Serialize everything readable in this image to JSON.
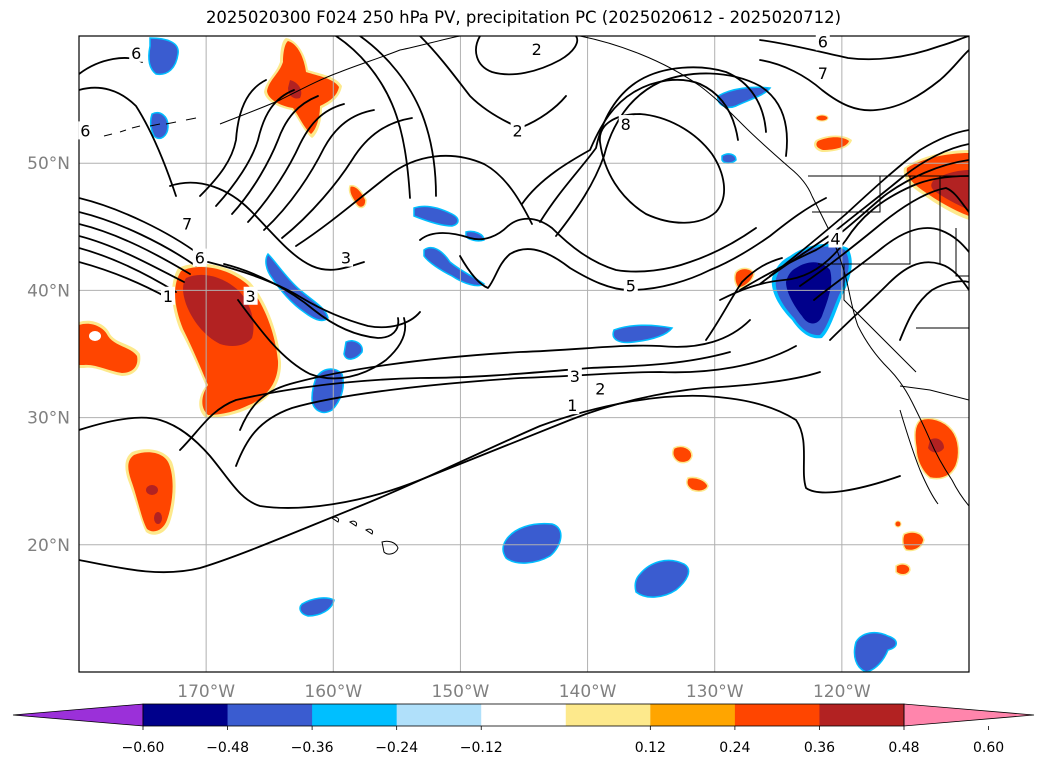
{
  "figure": {
    "title": "2025020300 F024 250 hPa PV, precipitation PC (2025020612 - 2025020712)"
  },
  "map": {
    "projection": "PlateCarree",
    "lon_range": [
      -180,
      -110
    ],
    "lat_range": [
      10,
      60
    ],
    "lon_ticks": [
      {
        "lon": -170,
        "label": "170°W"
      },
      {
        "lon": -160,
        "label": "160°W"
      },
      {
        "lon": -150,
        "label": "150°W"
      },
      {
        "lon": -140,
        "label": "140°W"
      },
      {
        "lon": -130,
        "label": "130°W"
      },
      {
        "lon": -120,
        "label": "120°W"
      }
    ],
    "lat_ticks": [
      {
        "lat": 50,
        "label": "50°N"
      },
      {
        "lat": 40,
        "label": "40°N"
      },
      {
        "lat": 30,
        "label": "30°N"
      },
      {
        "lat": 20,
        "label": "20°N"
      }
    ],
    "gridlines": true,
    "tick_label_color": "#808080"
  },
  "pv_contours": {
    "color": "#000000",
    "labels": [
      {
        "text": "6",
        "lon": -175.5,
        "lat": 58.6
      },
      {
        "text": "2",
        "lon": -144,
        "lat": 58.9
      },
      {
        "text": "6",
        "lon": -121.5,
        "lat": 59.5
      },
      {
        "text": "7",
        "lon": -121.5,
        "lat": 57.0
      },
      {
        "text": "2",
        "lon": -145.5,
        "lat": 52.5
      },
      {
        "text": "8",
        "lon": -137,
        "lat": 53.0
      },
      {
        "text": "6",
        "lon": -179.5,
        "lat": 52.5
      },
      {
        "text": "7",
        "lon": -171.5,
        "lat": 45.2
      },
      {
        "text": "6",
        "lon": -170.5,
        "lat": 42.5
      },
      {
        "text": "3",
        "lon": -166.5,
        "lat": 39.5
      },
      {
        "text": "1",
        "lon": -173,
        "lat": 39.5
      },
      {
        "text": "3",
        "lon": -159,
        "lat": 42.5
      },
      {
        "text": "4",
        "lon": -120.5,
        "lat": 44.0
      },
      {
        "text": "5",
        "lon": -136.6,
        "lat": 40.3
      },
      {
        "text": "3",
        "lon": -141,
        "lat": 33.2
      },
      {
        "text": "2",
        "lon": -139,
        "lat": 32.2
      },
      {
        "text": "1",
        "lon": -141.2,
        "lat": 30.9
      }
    ]
  },
  "precipitation_pc": {
    "colorbar": {
      "ticks": [
        "−0.60",
        "−0.48",
        "−0.36",
        "−0.24",
        "−0.12",
        "0.12",
        "0.24",
        "0.36",
        "0.48",
        "0.60"
      ],
      "bins": [
        {
          "range": "< −0.60",
          "color": "#9b30d9"
        },
        {
          "range": "−0.60 to −0.48",
          "color": "#00008b"
        },
        {
          "range": "−0.48 to −0.36",
          "color": "#3a5cd0"
        },
        {
          "range": "−0.36 to −0.24",
          "color": "#00bfff"
        },
        {
          "range": "−0.24 to −0.12",
          "color": "#b0e0fa"
        },
        {
          "range": "−0.12 to 0.12",
          "color": "#ffffff"
        },
        {
          "range": "0.12 to 0.24",
          "color": "#fde98c"
        },
        {
          "range": "0.24 to 0.36",
          "color": "#ffa500"
        },
        {
          "range": "0.36 to 0.48",
          "color": "#ff4500"
        },
        {
          "range": "0.48 to 0.60",
          "color": "#b22222"
        },
        {
          "range": "> 0.60",
          "color": "#ff85ac"
        }
      ]
    }
  }
}
